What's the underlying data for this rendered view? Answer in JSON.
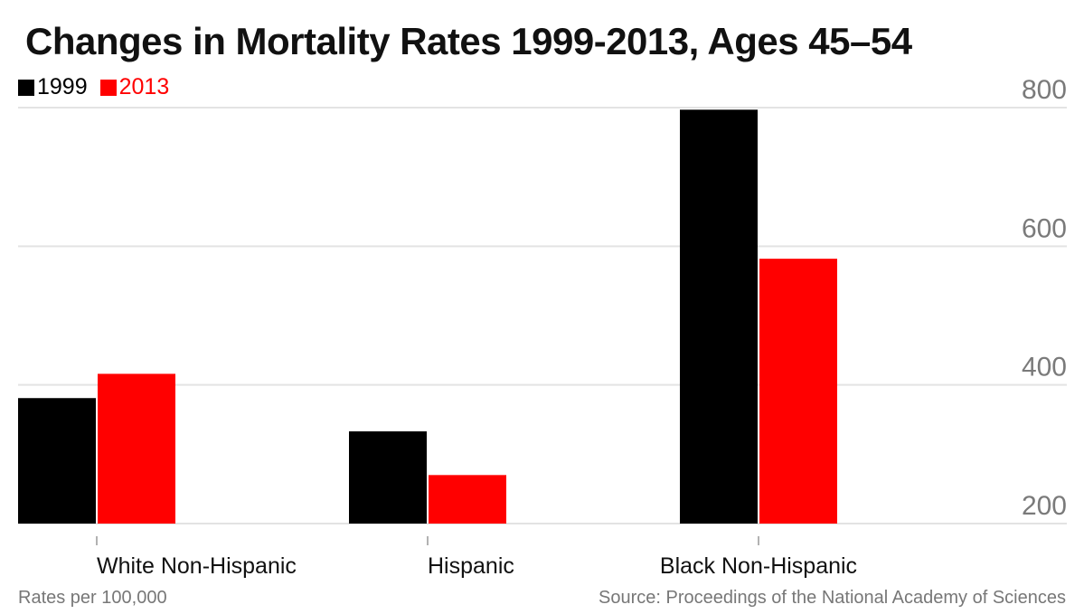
{
  "chart_data": {
    "type": "bar",
    "title": "Changes in Mortality Rates 1999-2013, Ages 45–54",
    "categories": [
      "White Non-Hispanic",
      "Hispanic",
      "Black Non-Hispanic"
    ],
    "series": [
      {
        "name": "1999",
        "color": "#000000",
        "values": [
          381,
          333,
          797
        ]
      },
      {
        "name": "2013",
        "color": "#ff0000",
        "values": [
          416,
          270,
          582
        ]
      }
    ],
    "yticks": [
      200,
      400,
      600,
      800
    ],
    "ylim": [
      200,
      800
    ],
    "y_axis_side": "right",
    "grid": true,
    "legend_position": "top-left",
    "note": "Rates per 100,000",
    "source": "Source: Proceedings of the National Academy of Sciences"
  }
}
